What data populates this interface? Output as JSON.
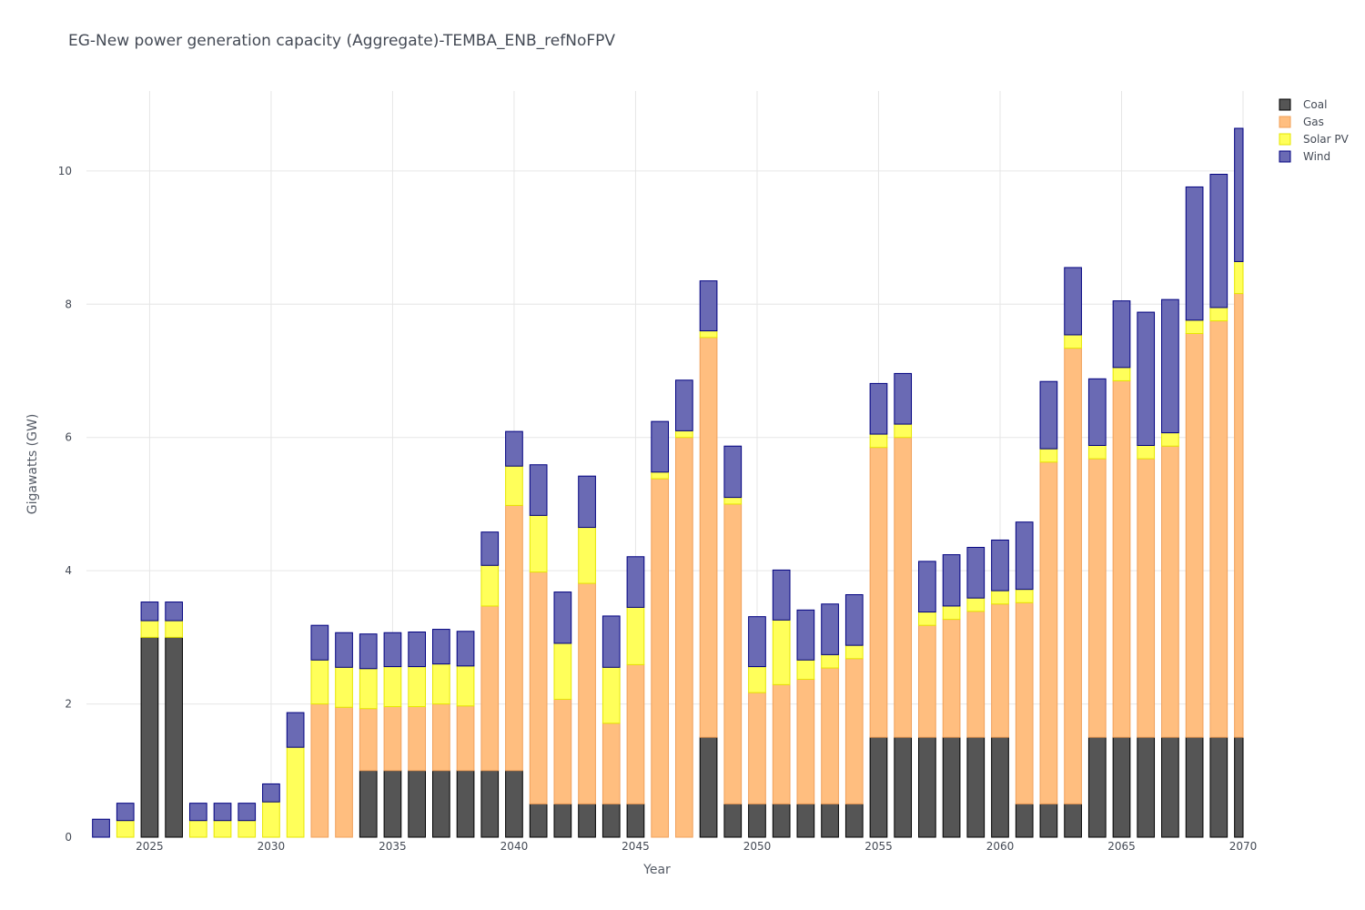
{
  "chart_data": {
    "type": "bar",
    "stacked": true,
    "title": "EG-New power generation capacity (Aggregate)-TEMBA_ENB_refNoFPV",
    "xlabel": "Year",
    "ylabel": "Gigawatts (GW)",
    "xlim": [
      2022.4,
      2070
    ],
    "ylim": [
      0,
      11.2
    ],
    "xticks": [
      2025,
      2030,
      2035,
      2040,
      2045,
      2050,
      2055,
      2060,
      2065,
      2070
    ],
    "yticks": [
      0,
      2,
      4,
      6,
      8,
      10
    ],
    "grid": true,
    "legend_position": "top-right",
    "x": [
      2023,
      2024,
      2025,
      2026,
      2027,
      2028,
      2029,
      2030,
      2031,
      2032,
      2033,
      2034,
      2035,
      2036,
      2037,
      2038,
      2039,
      2040,
      2041,
      2042,
      2043,
      2044,
      2045,
      2046,
      2047,
      2048,
      2049,
      2050,
      2051,
      2052,
      2053,
      2054,
      2055,
      2056,
      2057,
      2058,
      2059,
      2060,
      2061,
      2062,
      2063,
      2064,
      2065,
      2066,
      2067,
      2068,
      2069,
      2070
    ],
    "series": [
      {
        "name": "Coal",
        "color": "#555555",
        "stroke": "#000000",
        "values": [
          0,
          0,
          3,
          3,
          0,
          0,
          0,
          0,
          0,
          0,
          0,
          1,
          1,
          1,
          1,
          1,
          1,
          1,
          0.5,
          0.5,
          0.5,
          0.5,
          0.5,
          0,
          0,
          1.5,
          0.5,
          0.5,
          0.5,
          0.5,
          0.5,
          0.5,
          1.5,
          1.5,
          1.5,
          1.5,
          1.5,
          1.5,
          0.5,
          0.5,
          0.5,
          1.5,
          1.5,
          1.5,
          1.5,
          1.5,
          1.5,
          1.5
        ]
      },
      {
        "name": "Gas",
        "color": "#ffbe7f",
        "stroke": "#f0a05a",
        "values": [
          0,
          0,
          0,
          0,
          0,
          0,
          0,
          0,
          0,
          2,
          1.95,
          0.93,
          0.96,
          0.96,
          1.0,
          0.97,
          2.47,
          3.98,
          3.48,
          1.57,
          3.31,
          1.21,
          2.09,
          5.38,
          6.0,
          6.0,
          4.5,
          1.67,
          1.79,
          1.87,
          2.04,
          2.18,
          4.35,
          4.5,
          1.68,
          1.77,
          1.89,
          2.0,
          3.02,
          5.13,
          6.84,
          4.18,
          5.35,
          4.18,
          4.37,
          6.06,
          6.25,
          6.66
        ]
      },
      {
        "name": "Solar PV",
        "color": "#ffff5a",
        "stroke": "#e6e600",
        "values": [
          0,
          0.25,
          0.25,
          0.25,
          0.25,
          0.25,
          0.25,
          0.53,
          1.35,
          0.66,
          0.6,
          0.6,
          0.6,
          0.6,
          0.6,
          0.6,
          0.61,
          0.59,
          0.85,
          0.84,
          0.84,
          0.84,
          0.86,
          0.1,
          0.1,
          0.1,
          0.1,
          0.39,
          0.97,
          0.29,
          0.2,
          0.2,
          0.2,
          0.2,
          0.2,
          0.2,
          0.2,
          0.2,
          0.2,
          0.2,
          0.2,
          0.2,
          0.2,
          0.2,
          0.2,
          0.2,
          0.2,
          0.48
        ]
      },
      {
        "name": "Wind",
        "color": "#6a6ab4",
        "stroke": "#000080",
        "values": [
          0.27,
          0.26,
          0.28,
          0.28,
          0.26,
          0.26,
          0.26,
          0.27,
          0.52,
          0.52,
          0.52,
          0.52,
          0.51,
          0.52,
          0.52,
          0.52,
          0.5,
          0.52,
          0.76,
          0.77,
          0.77,
          0.77,
          0.76,
          0.76,
          0.76,
          0.75,
          0.77,
          0.75,
          0.75,
          0.75,
          0.76,
          0.76,
          0.76,
          0.76,
          0.76,
          0.77,
          0.76,
          0.76,
          1.01,
          1.01,
          1.01,
          1.0,
          1.0,
          2.0,
          2.0,
          2.0,
          2.0,
          2.0
        ]
      }
    ]
  }
}
